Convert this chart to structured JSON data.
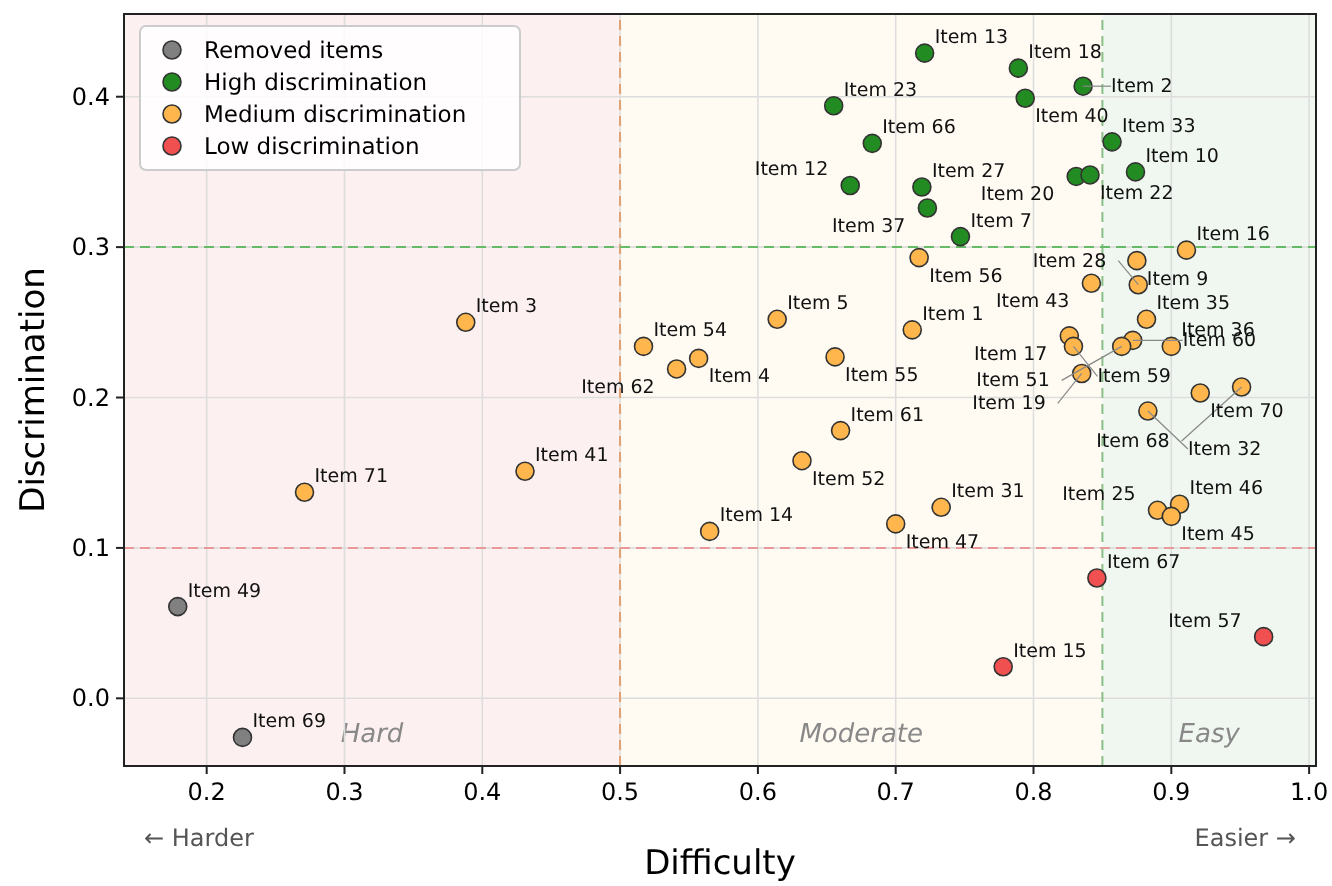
{
  "chart_data": {
    "type": "scatter",
    "xlabel": "Difficulty",
    "ylabel": "Discrimination",
    "xlim": [
      0.14,
      1.005
    ],
    "ylim": [
      -0.045,
      0.455
    ],
    "xticks": [
      0.2,
      0.3,
      0.4,
      0.5,
      0.6,
      0.7,
      0.8,
      0.9,
      {
        "value": 1.0,
        "label": "1.0"
      }
    ],
    "yticks": [
      {
        "value": 0,
        "label": "0.0"
      },
      0.1,
      0.2,
      0.3,
      0.4
    ],
    "grid": true,
    "legend": "top left",
    "marker": "circle",
    "series": [
      {
        "name": "Removed items",
        "color": "#808080",
        "x": [
          0.179,
          0.226
        ],
        "values": [
          0.061,
          -0.026
        ]
      },
      {
        "name": "High discrimination",
        "color": "#228b22",
        "x": [
          0.721,
          0.789,
          0.794,
          0.836,
          0.655,
          0.683,
          0.857,
          0.667,
          0.719,
          0.723,
          0.831,
          0.841,
          0.874,
          0.747
        ],
        "values": [
          0.429,
          0.419,
          0.399,
          0.407,
          0.394,
          0.369,
          0.37,
          0.341,
          0.34,
          0.326,
          0.347,
          0.348,
          0.35,
          0.307
        ]
      },
      {
        "name": "Medium discrimination",
        "color": "#ffb74d",
        "x": [
          0.717,
          0.875,
          0.911,
          0.842,
          0.876,
          0.882,
          0.614,
          0.712,
          0.517,
          0.557,
          0.541,
          0.656,
          0.826,
          0.829,
          0.872,
          0.864,
          0.9,
          0.835,
          0.951,
          0.921,
          0.883,
          0.388,
          0.66,
          0.632,
          0.733,
          0.7,
          0.565,
          0.89,
          0.906,
          0.9,
          0.271,
          0.431
        ],
        "values": [
          0.293,
          0.291,
          0.298,
          0.276,
          0.275,
          0.252,
          0.252,
          0.245,
          0.234,
          0.226,
          0.219,
          0.227,
          0.241,
          0.234,
          0.238,
          0.234,
          0.234,
          0.216,
          0.207,
          0.203,
          0.191,
          0.25,
          0.178,
          0.158,
          0.127,
          0.116,
          0.111,
          0.125,
          0.129,
          0.121,
          0.137,
          0.151
        ]
      },
      {
        "name": "Low discrimination",
        "color": "#f05050",
        "x": [
          0.846,
          0.967,
          0.778
        ],
        "values": [
          0.08,
          0.041,
          0.021
        ]
      }
    ],
    "ref_lines": [
      {
        "axis": "x",
        "value": 0.5,
        "color": "#e0a070",
        "line_style": "dashed"
      },
      {
        "axis": "x",
        "value": 0.85,
        "color": "#88c088",
        "line_style": "dashed"
      },
      {
        "axis": "y",
        "value": 0.3,
        "color": "#66bb66",
        "line_style": "dashed"
      },
      {
        "axis": "y",
        "value": 0.1,
        "color": "#e89a9a",
        "line_style": "dashed"
      }
    ],
    "bands": [
      {
        "axis": "x",
        "from": 0.14,
        "to": 0.5,
        "label": "Hard",
        "color": "#fdf0f0"
      },
      {
        "axis": "x",
        "from": 0.5,
        "to": 0.85,
        "label": "Moderate",
        "color": "#fffbf3"
      },
      {
        "axis": "x",
        "from": 0.85,
        "to": 1.005,
        "label": "Easy",
        "color": "#f0f7f0"
      }
    ],
    "annotations": [
      "← Harder",
      "Easier →",
      {
        "text": "Item 49",
        "x": 0.179,
        "y": 0.061
      },
      {
        "text": "Item 69",
        "x": 0.226,
        "y": -0.026
      },
      {
        "text": "Item 13",
        "x": 0.721,
        "y": 0.429
      },
      {
        "text": "Item 18",
        "x": 0.789,
        "y": 0.419
      },
      {
        "text": "Item 40",
        "x": 0.794,
        "y": 0.399
      },
      {
        "text": "Item 2",
        "x": 0.836,
        "y": 0.407
      },
      {
        "text": "Item 23",
        "x": 0.655,
        "y": 0.394
      },
      {
        "text": "Item 66",
        "x": 0.683,
        "y": 0.369
      },
      {
        "text": "Item 33",
        "x": 0.857,
        "y": 0.37
      },
      {
        "text": "Item 12",
        "x": 0.667,
        "y": 0.341
      },
      {
        "text": "Item 27",
        "x": 0.719,
        "y": 0.34
      },
      {
        "text": "Item 37",
        "x": 0.723,
        "y": 0.326
      },
      {
        "text": "Item 20",
        "x": 0.831,
        "y": 0.347
      },
      {
        "text": "Item 22",
        "x": 0.841,
        "y": 0.348
      },
      {
        "text": "Item 10",
        "x": 0.874,
        "y": 0.35
      },
      {
        "text": "Item 7",
        "x": 0.747,
        "y": 0.307
      },
      {
        "text": "Item 56",
        "x": 0.717,
        "y": 0.293
      },
      {
        "text": "Item 9",
        "x": 0.875,
        "y": 0.291
      },
      {
        "text": "Item 16",
        "x": 0.911,
        "y": 0.298
      },
      {
        "text": "Item 43",
        "x": 0.842,
        "y": 0.276
      },
      {
        "text": "Item 28",
        "x": 0.876,
        "y": 0.275
      },
      {
        "text": "Item 35",
        "x": 0.882,
        "y": 0.252
      },
      {
        "text": "Item 5",
        "x": 0.614,
        "y": 0.252
      },
      {
        "text": "Item 1",
        "x": 0.712,
        "y": 0.245
      },
      {
        "text": "Item 54",
        "x": 0.517,
        "y": 0.234
      },
      {
        "text": "Item 4",
        "x": 0.557,
        "y": 0.226
      },
      {
        "text": "Item 62",
        "x": 0.541,
        "y": 0.219
      },
      {
        "text": "Item 55",
        "x": 0.656,
        "y": 0.227
      },
      {
        "text": "Item 17",
        "x": 0.826,
        "y": 0.241
      },
      {
        "text": "Item 59",
        "x": 0.829,
        "y": 0.234
      },
      {
        "text": "Item 60",
        "x": 0.872,
        "y": 0.238
      },
      {
        "text": "Item 51",
        "x": 0.864,
        "y": 0.234
      },
      {
        "text": "Item 36",
        "x": 0.9,
        "y": 0.234
      },
      {
        "text": "Item 19",
        "x": 0.835,
        "y": 0.216
      },
      {
        "text": "Item 68",
        "x": 0.951,
        "y": 0.207
      },
      {
        "text": "Item 70",
        "x": 0.921,
        "y": 0.203
      },
      {
        "text": "Item 32",
        "x": 0.883,
        "y": 0.191
      },
      {
        "text": "Item 3",
        "x": 0.388,
        "y": 0.25
      },
      {
        "text": "Item 61",
        "x": 0.66,
        "y": 0.178
      },
      {
        "text": "Item 52",
        "x": 0.632,
        "y": 0.158
      },
      {
        "text": "Item 31",
        "x": 0.733,
        "y": 0.127
      },
      {
        "text": "Item 47",
        "x": 0.7,
        "y": 0.116
      },
      {
        "text": "Item 14",
        "x": 0.565,
        "y": 0.111
      },
      {
        "text": "Item 25",
        "x": 0.89,
        "y": 0.125
      },
      {
        "text": "Item 46",
        "x": 0.906,
        "y": 0.129
      },
      {
        "text": "Item 45",
        "x": 0.9,
        "y": 0.121
      },
      {
        "text": "Item 71",
        "x": 0.271,
        "y": 0.137
      },
      {
        "text": "Item 41",
        "x": 0.431,
        "y": 0.151
      },
      {
        "text": "Item 67",
        "x": 0.846,
        "y": 0.08
      },
      {
        "text": "Item 57",
        "x": 0.967,
        "y": 0.041
      },
      {
        "text": "Item 15",
        "x": 0.778,
        "y": 0.021
      }
    ]
  }
}
